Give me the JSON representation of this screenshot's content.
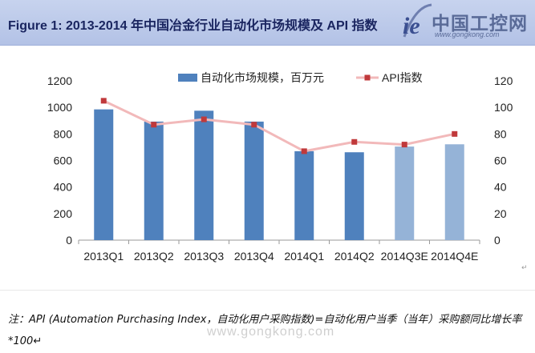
{
  "header": {
    "title": "Figure 1: 2013-2014 年中国冶金行业自动化市场规模及 API 指数",
    "title_mark": "↵"
  },
  "logo": {
    "name": "中国工控网",
    "url": "www.gongkong.com",
    "mark_letters": "ie"
  },
  "colors": {
    "bar": "#4f81bd",
    "bar_estimate": "#95b3d7",
    "line": "#f2b9ba",
    "marker": "#c0393b",
    "header_bg": "#b7c5e8",
    "title": "#1a2560"
  },
  "chart_data": {
    "type": "bar",
    "categories": [
      "2013Q1",
      "2013Q2",
      "2013Q3",
      "2013Q4",
      "2014Q1",
      "2014Q2",
      "2014Q3E",
      "2014Q4E"
    ],
    "series": [
      {
        "name": "自动化市场规模，百万元",
        "type": "bar",
        "axis": "left",
        "values": [
          985,
          893,
          975,
          893,
          670,
          662,
          705,
          722
        ],
        "estimate_from_index": 6
      },
      {
        "name": "API指数",
        "type": "line",
        "axis": "right",
        "values": [
          105,
          87,
          91,
          87,
          67,
          74,
          72,
          80
        ]
      }
    ],
    "y_left": {
      "min": 0,
      "max": 1200,
      "step": 200,
      "ticks": [
        "0",
        "200",
        "400",
        "600",
        "800",
        "1000",
        "1200"
      ]
    },
    "y_right": {
      "min": 0,
      "max": 120,
      "step": 20,
      "ticks": [
        "0",
        "20",
        "40",
        "60",
        "80",
        "100",
        "120"
      ]
    },
    "legend_position": "top-center",
    "grid": false
  },
  "chart_mark": "↵",
  "note": {
    "text": "注：API (Automation Purchasing Index，自动化用户采购指数)=自动化用户当季（当年）采购额同比增长率*100↵"
  },
  "watermark": "www.gongkong.com"
}
